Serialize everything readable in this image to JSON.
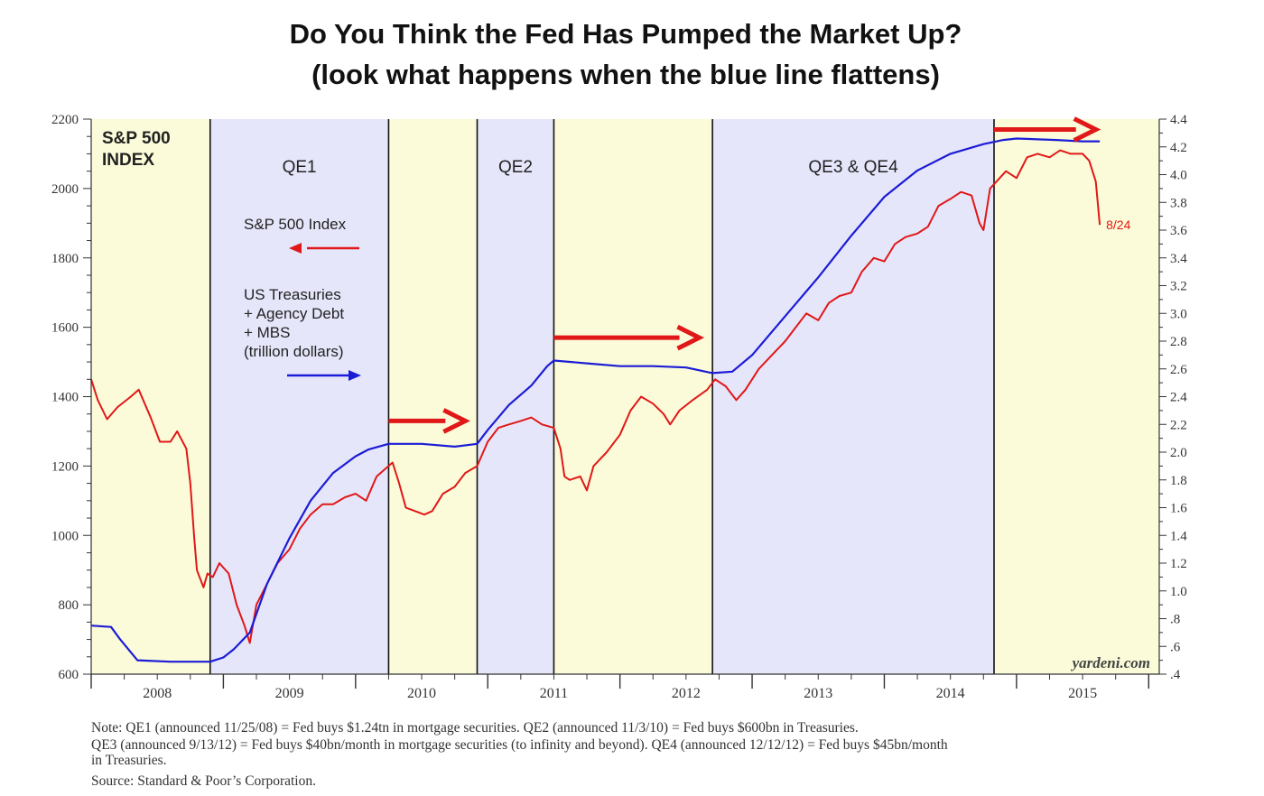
{
  "title": {
    "line1": "Do You Think the Fed Has Pumped the Market Up?",
    "line2": "(look what happens when the blue line flattens)"
  },
  "chart_data": {
    "type": "line",
    "y_left": {
      "min": 600,
      "max": 2200,
      "ticks": [
        600,
        800,
        1000,
        1200,
        1400,
        1600,
        1800,
        2000,
        2200
      ]
    },
    "y_right": {
      "min": 0.4,
      "max": 4.4,
      "ticks": [
        ".4",
        ".6",
        ".8",
        "1.0",
        "1.2",
        "1.4",
        "1.6",
        "1.8",
        "2.0",
        "2.2",
        "2.4",
        "2.6",
        "2.8",
        "3.0",
        "3.2",
        "3.4",
        "3.6",
        "3.8",
        "4.0",
        "4.2",
        "4.4"
      ]
    },
    "x_labels": [
      "2008",
      "2009",
      "2010",
      "2011",
      "2012",
      "2013",
      "2014",
      "2015"
    ],
    "index_label": "S&P 500\nINDEX",
    "regions": [
      {
        "label": "",
        "start": 2008.0,
        "end": 2008.9,
        "color": "#fbfbd9"
      },
      {
        "label": "QE1",
        "start": 2008.9,
        "end": 2010.25,
        "color": "#e6e6fb"
      },
      {
        "label": "",
        "start": 2010.25,
        "end": 2010.92,
        "color": "#fbfbd9"
      },
      {
        "label": "QE2",
        "start": 2010.92,
        "end": 2011.5,
        "color": "#e6e6fb"
      },
      {
        "label": "",
        "start": 2011.5,
        "end": 2012.7,
        "color": "#fbfbd9"
      },
      {
        "label": "QE3 & QE4",
        "start": 2012.7,
        "end": 2014.83,
        "color": "#e6e6fb"
      },
      {
        "label": "",
        "start": 2014.83,
        "end": 2016.08,
        "color": "#fbfbd9"
      }
    ],
    "legend": {
      "sp500": "S&P 500 Index",
      "treasuries": "US Treasuries\n+ Agency Debt\n+ MBS\n(trillion dollars)"
    },
    "series": [
      {
        "name": "S&P 500 Index",
        "color": "#e01818",
        "axis": "left",
        "points": [
          [
            2008.0,
            1450
          ],
          [
            2008.05,
            1390
          ],
          [
            2008.12,
            1335
          ],
          [
            2008.2,
            1370
          ],
          [
            2008.3,
            1400
          ],
          [
            2008.36,
            1420
          ],
          [
            2008.45,
            1340
          ],
          [
            2008.52,
            1270
          ],
          [
            2008.6,
            1270
          ],
          [
            2008.65,
            1300
          ],
          [
            2008.72,
            1250
          ],
          [
            2008.75,
            1150
          ],
          [
            2008.78,
            990
          ],
          [
            2008.8,
            900
          ],
          [
            2008.85,
            850
          ],
          [
            2008.88,
            890
          ],
          [
            2008.92,
            880
          ],
          [
            2008.97,
            920
          ],
          [
            2009.04,
            890
          ],
          [
            2009.1,
            800
          ],
          [
            2009.16,
            740
          ],
          [
            2009.2,
            690
          ],
          [
            2009.25,
            800
          ],
          [
            2009.33,
            860
          ],
          [
            2009.41,
            920
          ],
          [
            2009.5,
            960
          ],
          [
            2009.58,
            1020
          ],
          [
            2009.66,
            1060
          ],
          [
            2009.75,
            1090
          ],
          [
            2009.83,
            1090
          ],
          [
            2009.92,
            1110
          ],
          [
            2010.0,
            1120
          ],
          [
            2010.08,
            1100
          ],
          [
            2010.16,
            1170
          ],
          [
            2010.28,
            1210
          ],
          [
            2010.33,
            1150
          ],
          [
            2010.38,
            1080
          ],
          [
            2010.45,
            1070
          ],
          [
            2010.52,
            1060
          ],
          [
            2010.58,
            1070
          ],
          [
            2010.66,
            1120
          ],
          [
            2010.75,
            1140
          ],
          [
            2010.83,
            1180
          ],
          [
            2010.92,
            1200
          ],
          [
            2011.0,
            1270
          ],
          [
            2011.08,
            1310
          ],
          [
            2011.16,
            1320
          ],
          [
            2011.25,
            1330
          ],
          [
            2011.33,
            1340
          ],
          [
            2011.41,
            1320
          ],
          [
            2011.5,
            1310
          ],
          [
            2011.55,
            1250
          ],
          [
            2011.58,
            1170
          ],
          [
            2011.62,
            1160
          ],
          [
            2011.7,
            1170
          ],
          [
            2011.75,
            1130
          ],
          [
            2011.8,
            1200
          ],
          [
            2011.9,
            1240
          ],
          [
            2012.0,
            1290
          ],
          [
            2012.08,
            1360
          ],
          [
            2012.16,
            1400
          ],
          [
            2012.25,
            1380
          ],
          [
            2012.33,
            1350
          ],
          [
            2012.38,
            1320
          ],
          [
            2012.45,
            1360
          ],
          [
            2012.55,
            1390
          ],
          [
            2012.66,
            1420
          ],
          [
            2012.72,
            1450
          ],
          [
            2012.8,
            1430
          ],
          [
            2012.88,
            1390
          ],
          [
            2012.95,
            1420
          ],
          [
            2013.05,
            1480
          ],
          [
            2013.15,
            1520
          ],
          [
            2013.25,
            1560
          ],
          [
            2013.33,
            1600
          ],
          [
            2013.41,
            1640
          ],
          [
            2013.5,
            1620
          ],
          [
            2013.58,
            1670
          ],
          [
            2013.66,
            1690
          ],
          [
            2013.75,
            1700
          ],
          [
            2013.83,
            1760
          ],
          [
            2013.92,
            1800
          ],
          [
            2014.0,
            1790
          ],
          [
            2014.08,
            1840
          ],
          [
            2014.16,
            1860
          ],
          [
            2014.25,
            1870
          ],
          [
            2014.33,
            1890
          ],
          [
            2014.41,
            1950
          ],
          [
            2014.5,
            1970
          ],
          [
            2014.58,
            1990
          ],
          [
            2014.66,
            1980
          ],
          [
            2014.72,
            1900
          ],
          [
            2014.75,
            1880
          ],
          [
            2014.8,
            2000
          ],
          [
            2014.92,
            2050
          ],
          [
            2015.0,
            2030
          ],
          [
            2015.08,
            2090
          ],
          [
            2015.16,
            2100
          ],
          [
            2015.25,
            2090
          ],
          [
            2015.33,
            2110
          ],
          [
            2015.41,
            2100
          ],
          [
            2015.5,
            2100
          ],
          [
            2015.55,
            2080
          ],
          [
            2015.6,
            2020
          ],
          [
            2015.63,
            1895
          ]
        ]
      },
      {
        "name": "US Treasuries + Agency Debt + MBS (trillion dollars)",
        "color": "#1c1cd6",
        "axis": "right",
        "points": [
          [
            2008.0,
            0.75
          ],
          [
            2008.15,
            0.74
          ],
          [
            2008.22,
            0.65
          ],
          [
            2008.35,
            0.5
          ],
          [
            2008.6,
            0.49
          ],
          [
            2008.9,
            0.49
          ],
          [
            2009.0,
            0.52
          ],
          [
            2009.08,
            0.58
          ],
          [
            2009.2,
            0.7
          ],
          [
            2009.33,
            1.05
          ],
          [
            2009.5,
            1.38
          ],
          [
            2009.66,
            1.65
          ],
          [
            2009.83,
            1.85
          ],
          [
            2010.0,
            1.97
          ],
          [
            2010.1,
            2.02
          ],
          [
            2010.25,
            2.06
          ],
          [
            2010.5,
            2.06
          ],
          [
            2010.75,
            2.04
          ],
          [
            2010.92,
            2.06
          ],
          [
            2011.0,
            2.16
          ],
          [
            2011.16,
            2.34
          ],
          [
            2011.33,
            2.48
          ],
          [
            2011.45,
            2.62
          ],
          [
            2011.5,
            2.66
          ],
          [
            2011.75,
            2.64
          ],
          [
            2012.0,
            2.62
          ],
          [
            2012.25,
            2.62
          ],
          [
            2012.5,
            2.61
          ],
          [
            2012.7,
            2.57
          ],
          [
            2012.85,
            2.58
          ],
          [
            2013.0,
            2.7
          ],
          [
            2013.25,
            2.98
          ],
          [
            2013.5,
            3.26
          ],
          [
            2013.75,
            3.56
          ],
          [
            2014.0,
            3.84
          ],
          [
            2014.25,
            4.03
          ],
          [
            2014.5,
            4.15
          ],
          [
            2014.75,
            4.22
          ],
          [
            2014.9,
            4.25
          ],
          [
            2015.0,
            4.26
          ],
          [
            2015.3,
            4.25
          ],
          [
            2015.5,
            4.24
          ],
          [
            2015.63,
            4.24
          ]
        ]
      }
    ],
    "arrows": [
      {
        "x1": 2010.25,
        "x2": 2010.83,
        "y": 1330
      },
      {
        "x1": 2011.5,
        "x2": 2012.6,
        "y": 1570
      },
      {
        "x1": 2014.83,
        "x2": 2015.6,
        "y": 2170
      }
    ],
    "annotations": {
      "end_label": "8/24",
      "source_mark": "yardeni.com"
    }
  },
  "notes": {
    "line1": "Note: QE1 (announced 11/25/08) = Fed buys $1.24tn in mortgage securities. QE2 (announced 11/3/10) = Fed buys $600bn in Treasuries.",
    "line2": "QE3 (announced 9/13/12) = Fed buys $40bn/month in mortgage securities (to infinity and beyond). QE4 (announced 12/12/12) = Fed buys $45bn/month",
    "line3": "in Treasuries.",
    "line4": "Source: Standard & Poor’s Corporation."
  }
}
